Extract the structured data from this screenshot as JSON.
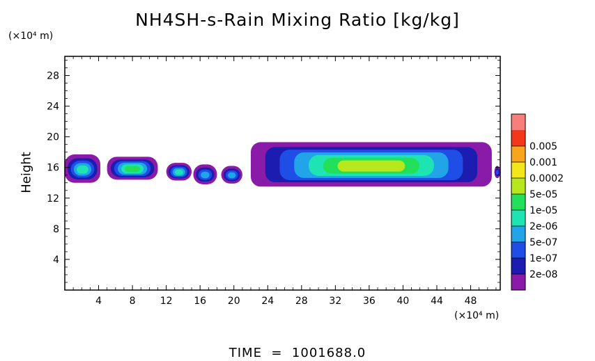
{
  "chart_data": {
    "type": "heatmap",
    "title": "NH4SH-s-Rain Mixing Ratio [kg/kg]",
    "ylabel": "Height",
    "y_unit": "(×10⁴ m)",
    "x_unit": "(×10⁴ m)",
    "xlim": [
      0,
      51.5
    ],
    "ylim": [
      0,
      30.5
    ],
    "x_ticks": [
      4,
      8,
      12,
      16,
      20,
      24,
      28,
      32,
      36,
      40,
      44,
      48
    ],
    "y_ticks": [
      4,
      8,
      12,
      16,
      20,
      24,
      28
    ],
    "colorbar": {
      "levels": [
        "2e-08",
        "1e-07",
        "5e-07",
        "2e-06",
        "1e-05",
        "5e-05",
        "0.0002",
        "0.001",
        "0.005"
      ],
      "colors": [
        "#8a1aa8",
        "#1c1cb0",
        "#1e4ee6",
        "#21a5e8",
        "#1ee3b3",
        "#22e05a",
        "#b7e81c",
        "#f3e61a",
        "#f7a51a",
        "#f4371b",
        "#f77f7a"
      ]
    },
    "cloud_blobs": [
      {
        "x": [
          0,
          4.2
        ],
        "y": [
          14.0,
          17.7
        ],
        "peak_level": 4
      },
      {
        "x": [
          5.0,
          11.0
        ],
        "y": [
          14.4,
          17.4
        ],
        "peak_level": 5
      },
      {
        "x": [
          12.0,
          15.0
        ],
        "y": [
          14.3,
          16.6
        ],
        "peak_level": 4
      },
      {
        "x": [
          15.2,
          18.0
        ],
        "y": [
          13.8,
          16.4
        ],
        "peak_level": 3
      },
      {
        "x": [
          18.5,
          21.0
        ],
        "y": [
          13.9,
          16.2
        ],
        "peak_level": 3
      },
      {
        "x": [
          22.0,
          50.5
        ],
        "y": [
          13.5,
          19.3
        ],
        "peak_level": 6
      },
      {
        "x": [
          50.8,
          51.5
        ],
        "y": [
          14.6,
          16.2
        ],
        "peak_level": 2
      }
    ]
  },
  "footer": "TIME  =  1001688.0"
}
